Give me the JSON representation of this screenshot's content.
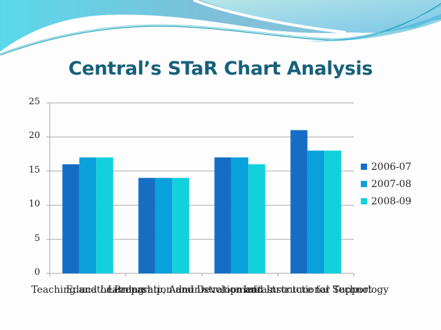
{
  "slide": {
    "title": "Central’s STaR Chart Analysis"
  },
  "chart_data": {
    "type": "bar",
    "title": "Central’s STaR Chart Analysis",
    "xlabel": "",
    "ylabel": "",
    "ylim": [
      0,
      25
    ],
    "yticks": [
      0,
      5,
      10,
      15,
      20,
      25
    ],
    "grid": true,
    "legend_position": "right",
    "categories": [
      "Teaching and Learning",
      "Educator Preparation and Development",
      "Leadership, Administration and Instructional Support",
      "Infrastructure for Technology"
    ],
    "series": [
      {
        "name": "2006-07",
        "color": "#156ec4",
        "values": [
          16,
          14,
          17,
          21
        ]
      },
      {
        "name": "2007-08",
        "color": "#0aa0dc",
        "values": [
          17,
          14,
          17,
          18
        ]
      },
      {
        "name": "2008-09",
        "color": "#12d0dc",
        "values": [
          17,
          14,
          16,
          18
        ]
      }
    ]
  },
  "legend": {
    "items": [
      "2006-07",
      "2007-08",
      "2008-09"
    ]
  },
  "axis": {
    "y_labels": [
      "0",
      "5",
      "10",
      "15",
      "20",
      "25"
    ]
  }
}
